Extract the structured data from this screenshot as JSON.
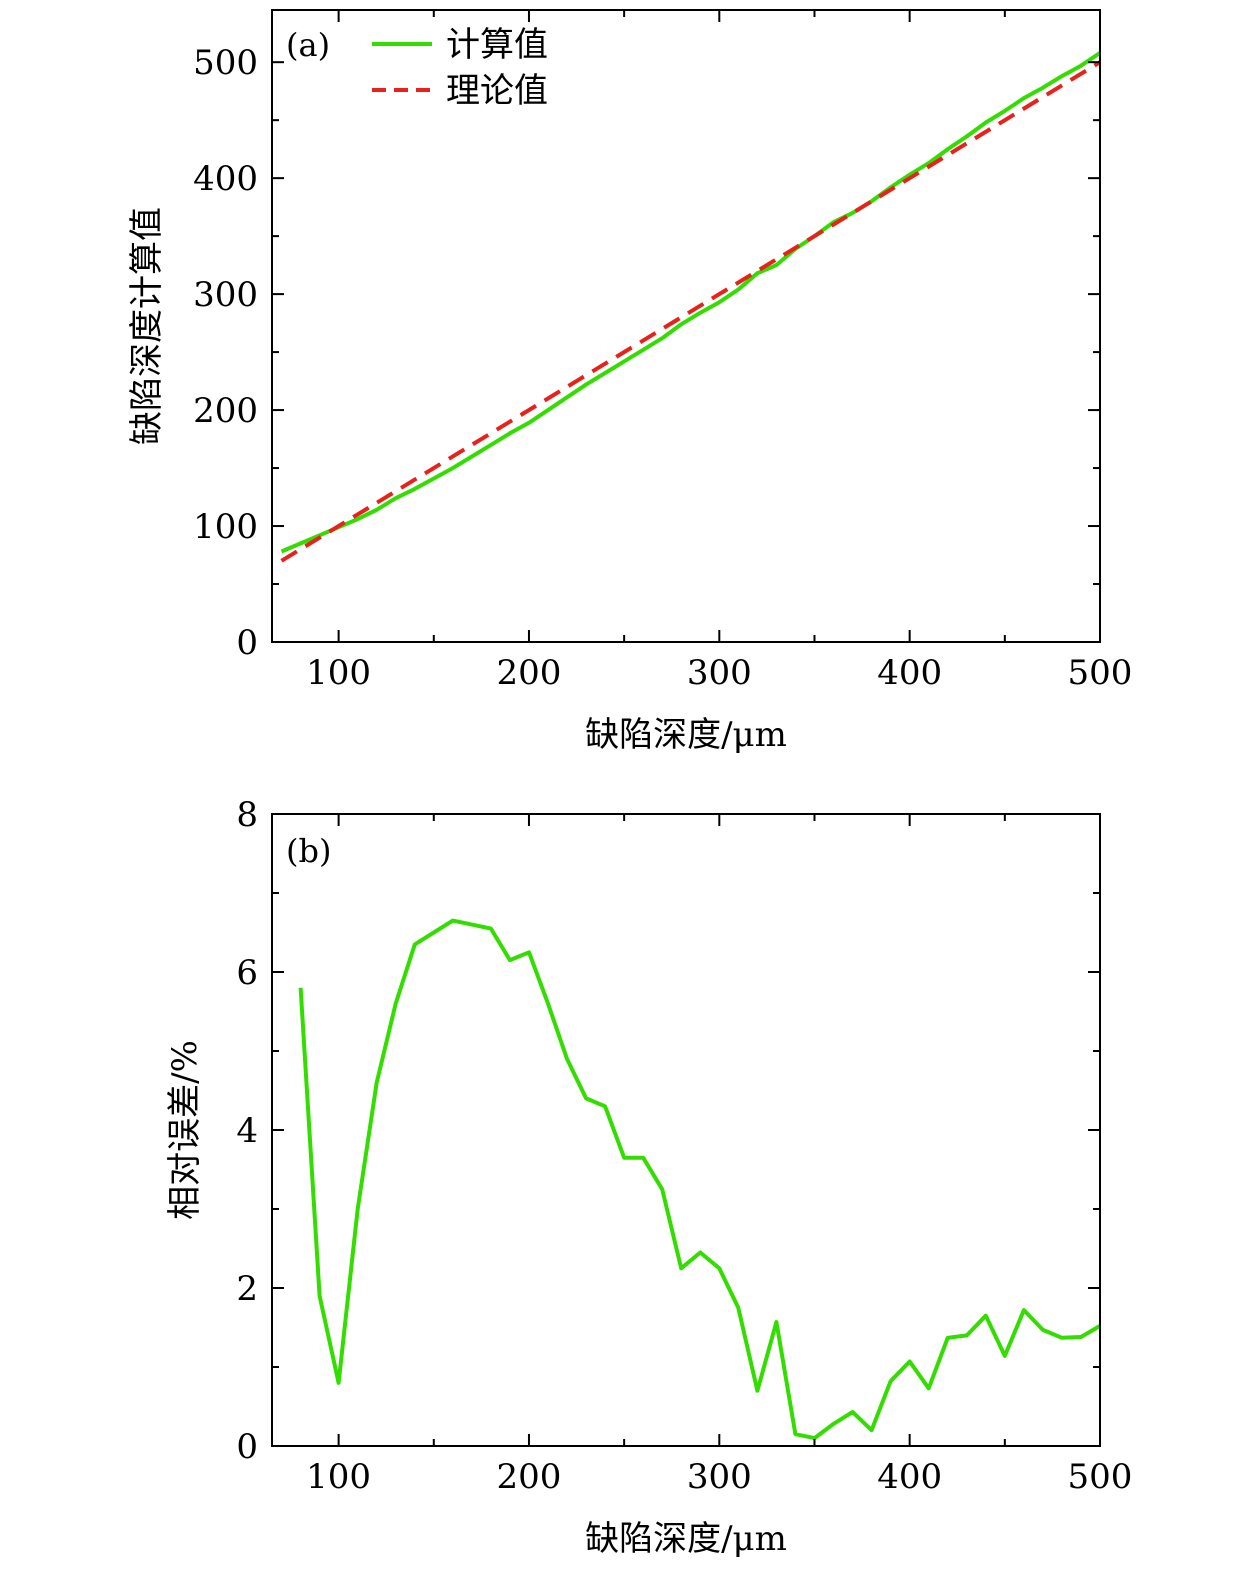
{
  "chart_data": [
    {
      "type": "line",
      "panel_label": "(a)",
      "xlabel": "缺陷深度/μm",
      "ylabel": "缺陷深度计算值",
      "xlim": [
        65,
        500
      ],
      "ylim": [
        0,
        545
      ],
      "xticks": [
        100,
        200,
        300,
        400,
        500
      ],
      "yticks": [
        0,
        100,
        200,
        300,
        400,
        500
      ],
      "xtick_labels": [
        "100",
        "200",
        "300",
        "400",
        "500"
      ],
      "ytick_labels": [
        "0",
        "100",
        "200",
        "300",
        "400",
        "500"
      ],
      "x_minor_ticks": [
        150,
        250,
        350,
        450
      ],
      "y_minor_ticks": [
        50,
        150,
        250,
        350,
        450
      ],
      "legend_position": "top-left",
      "series": [
        {
          "name": "计算值",
          "color": "#33dd00",
          "style": "solid",
          "x": [
            70,
            80,
            90,
            100,
            110,
            120,
            130,
            140,
            150,
            160,
            170,
            180,
            190,
            200,
            210,
            220,
            230,
            240,
            250,
            260,
            270,
            280,
            290,
            300,
            310,
            320,
            330,
            340,
            350,
            360,
            370,
            380,
            390,
            400,
            410,
            420,
            430,
            440,
            450,
            460,
            470,
            480,
            490,
            500
          ],
          "y": [
            78,
            85,
            92,
            99,
            106,
            114,
            124,
            132,
            141,
            150,
            160,
            170,
            180,
            189,
            200,
            211,
            222,
            232,
            242,
            252,
            262,
            274,
            284,
            293,
            304,
            318,
            325,
            339,
            350,
            362,
            370,
            380,
            392,
            403,
            413,
            425,
            436,
            448,
            458,
            469,
            478,
            488,
            497,
            508
          ]
        },
        {
          "name": "理论值",
          "color": "#e8221b",
          "style": "dashed",
          "x": [
            70,
            500
          ],
          "y": [
            70,
            500
          ]
        }
      ]
    },
    {
      "type": "line",
      "panel_label": "(b)",
      "xlabel": "缺陷深度/μm",
      "ylabel": "相对误差/%",
      "xlim": [
        65,
        500
      ],
      "ylim": [
        0,
        8
      ],
      "xticks": [
        100,
        200,
        300,
        400,
        500
      ],
      "yticks": [
        0,
        2,
        4,
        6,
        8
      ],
      "xtick_labels": [
        "100",
        "200",
        "300",
        "400",
        "500"
      ],
      "ytick_labels": [
        "0",
        "2",
        "4",
        "6",
        "8"
      ],
      "x_minor_ticks": [
        150,
        250,
        350,
        450
      ],
      "y_minor_ticks": [
        1,
        3,
        5,
        7
      ],
      "series": [
        {
          "color": "#33dd00",
          "style": "solid",
          "x": [
            80,
            90,
            100,
            110,
            120,
            130,
            140,
            150,
            160,
            170,
            180,
            190,
            200,
            210,
            220,
            230,
            240,
            250,
            260,
            270,
            280,
            290,
            300,
            310,
            320,
            330,
            340,
            350,
            360,
            370,
            380,
            390,
            400,
            410,
            420,
            430,
            440,
            450,
            460,
            470,
            480,
            490,
            500
          ],
          "y": [
            5.8,
            1.9,
            0.8,
            3.0,
            4.6,
            5.6,
            6.35,
            6.5,
            6.65,
            6.6,
            6.55,
            6.15,
            6.25,
            5.6,
            4.9,
            4.4,
            4.3,
            3.65,
            3.65,
            3.25,
            2.25,
            2.45,
            2.25,
            1.75,
            0.7,
            1.57,
            0.15,
            0.1,
            0.28,
            0.43,
            0.2,
            0.82,
            1.07,
            0.73,
            1.37,
            1.4,
            1.65,
            1.14,
            1.72,
            1.47,
            1.37,
            1.38,
            1.52
          ]
        }
      ]
    }
  ]
}
